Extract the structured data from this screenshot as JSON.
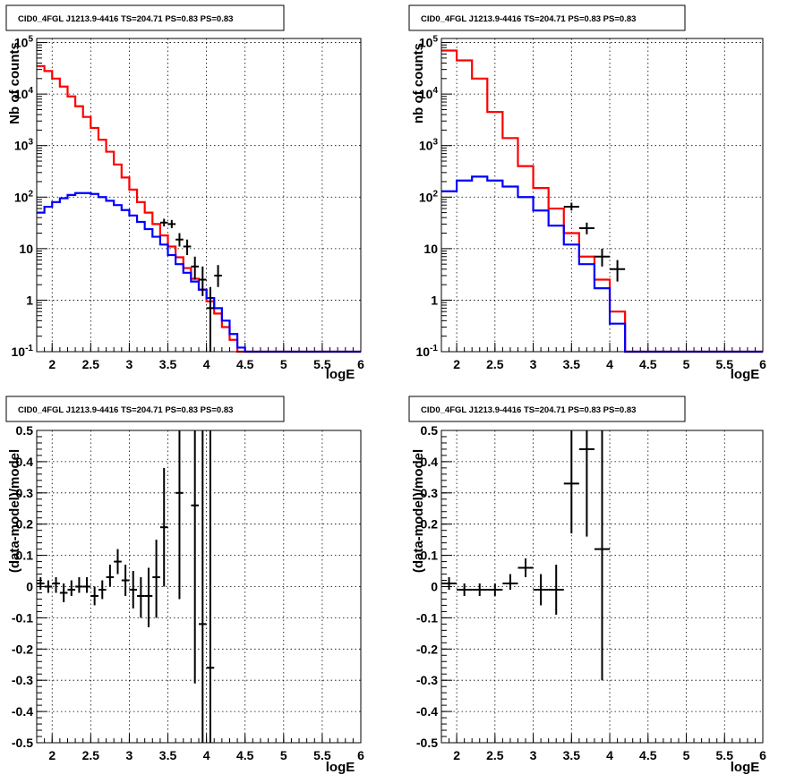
{
  "chart_data": [
    {
      "type": "line",
      "title": "CID0_4FGL J1213.9-4416 TS=204.71 PS=0.83 PS=0.83",
      "xlabel": "logE",
      "ylabel": "Nb of counts",
      "xlim": [
        1.8,
        6.0
      ],
      "ylim": [
        0.1,
        120000
      ],
      "log_y": true,
      "grid": true,
      "x_ticks": [
        "2",
        "2.5",
        "3",
        "3.5",
        "4",
        "4.5",
        "5",
        "5.5",
        "6"
      ],
      "y_ticks": [
        "10^-1",
        "1",
        "10",
        "10^2",
        "10^3",
        "10^4",
        "10^5"
      ],
      "bin_edges": [
        1.8,
        1.9,
        2.0,
        2.1,
        2.2,
        2.3,
        2.4,
        2.5,
        2.6,
        2.7,
        2.8,
        2.9,
        3.0,
        3.1,
        3.2,
        3.3,
        3.4,
        3.5,
        3.6,
        3.7,
        3.8,
        3.9,
        4.0,
        4.1,
        4.2,
        4.3,
        4.4,
        4.5,
        4.6,
        4.7,
        4.8,
        4.9,
        5.0,
        5.1,
        5.2,
        5.3,
        5.4,
        5.5,
        5.6,
        5.7,
        5.8,
        5.9,
        6.0
      ],
      "series": [
        {
          "color": "#ff0000",
          "values": [
            35000,
            28000,
            20000,
            14000,
            9000,
            5800,
            3600,
            2200,
            1300,
            760,
            430,
            240,
            140,
            80,
            50,
            30,
            18,
            11,
            6.8,
            4.2,
            2.6,
            1.6,
            0.95,
            0.55,
            0.3,
            0.17,
            0.1,
            0.1,
            0.1,
            0.1,
            0.1,
            0.1,
            0.1,
            0.1,
            0.1,
            0.1,
            0.1,
            0.1,
            0.1,
            0.1,
            0.1,
            0.1
          ]
        },
        {
          "color": "#0000ff",
          "values": [
            50,
            65,
            80,
            95,
            110,
            120,
            120,
            115,
            100,
            85,
            70,
            56,
            44,
            33,
            24,
            17,
            12,
            7.5,
            5,
            3.4,
            2.3,
            1.6,
            1.1,
            0.7,
            0.4,
            0.22,
            0.12,
            0.1,
            0.1,
            0.1,
            0.1,
            0.1,
            0.1,
            0.1,
            0.1,
            0.1,
            0.1,
            0.1,
            0.1,
            0.1,
            0.1,
            0.1
          ]
        }
      ],
      "data_points": [
        {
          "x": 3.45,
          "y": 32,
          "xerr": 0.05,
          "ylo": 27,
          "yhi": 38
        },
        {
          "x": 3.55,
          "y": 30,
          "xerr": 0.05,
          "ylo": 25,
          "yhi": 36
        },
        {
          "x": 3.65,
          "y": 15,
          "xerr": 0.05,
          "ylo": 11,
          "yhi": 20
        },
        {
          "x": 3.75,
          "y": 11,
          "xerr": 0.05,
          "ylo": 7.5,
          "yhi": 15
        },
        {
          "x": 3.85,
          "y": 4.5,
          "xerr": 0.05,
          "ylo": 2.5,
          "yhi": 7
        },
        {
          "x": 3.95,
          "y": 2.5,
          "xerr": 0.05,
          "ylo": 1.2,
          "yhi": 4.5
        },
        {
          "x": 4.05,
          "y": 0.7,
          "xerr": 0.05,
          "ylo": 0.1,
          "yhi": 1.8
        },
        {
          "x": 4.15,
          "y": 3,
          "xerr": 0.05,
          "ylo": 1.8,
          "yhi": 4.8
        }
      ]
    },
    {
      "type": "line",
      "title": "CID0_4FGL J1213.9-4416 TS=204.71 PS=0.83 PS=0.83",
      "xlabel": "logE",
      "ylabel": "nb of counts",
      "xlim": [
        1.8,
        6.0
      ],
      "ylim": [
        0.1,
        120000
      ],
      "log_y": true,
      "grid": true,
      "x_ticks": [
        "2",
        "2.5",
        "3",
        "3.5",
        "4",
        "4.5",
        "5",
        "5.5",
        "6"
      ],
      "y_ticks": [
        "10^-1",
        "1",
        "10",
        "10^2",
        "10^3",
        "10^4",
        "10^5"
      ],
      "bin_edges": [
        1.8,
        2.0,
        2.2,
        2.4,
        2.6,
        2.8,
        3.0,
        3.2,
        3.4,
        3.6,
        3.8,
        4.0,
        4.2,
        4.4,
        4.6,
        4.8,
        5.0,
        5.2,
        5.4,
        5.6,
        5.8,
        6.0
      ],
      "series": [
        {
          "color": "#ff0000",
          "values": [
            70000,
            45000,
            20000,
            4500,
            1400,
            400,
            150,
            60,
            20,
            7,
            2.5,
            0.6,
            0.1,
            0.1,
            0.1,
            0.1,
            0.1,
            0.1,
            0.1,
            0.1,
            0.1
          ]
        },
        {
          "color": "#0000ff",
          "values": [
            130,
            210,
            250,
            210,
            160,
            100,
            55,
            28,
            12,
            5,
            1.7,
            0.35,
            0.1,
            0.1,
            0.1,
            0.1,
            0.1,
            0.1,
            0.1,
            0.1,
            0.1
          ]
        }
      ],
      "data_points": [
        {
          "x": 3.5,
          "y": 65,
          "xerr": 0.1,
          "ylo": 55,
          "yhi": 78
        },
        {
          "x": 3.7,
          "y": 25,
          "xerr": 0.1,
          "ylo": 19,
          "yhi": 32
        },
        {
          "x": 3.9,
          "y": 7,
          "xerr": 0.1,
          "ylo": 4.5,
          "yhi": 10
        },
        {
          "x": 4.1,
          "y": 4,
          "xerr": 0.1,
          "ylo": 2.3,
          "yhi": 6
        }
      ]
    },
    {
      "type": "scatter",
      "title": "CID0_4FGL J1213.9-4416 TS=204.71 PS=0.83 PS=0.83",
      "xlabel": "logE",
      "ylabel": "(data-model)/model",
      "xlim": [
        1.8,
        6.0
      ],
      "ylim": [
        -0.5,
        0.5
      ],
      "grid": true,
      "x_ticks": [
        "2",
        "2.5",
        "3",
        "3.5",
        "4",
        "4.5",
        "5",
        "5.5",
        "6"
      ],
      "y_ticks": [
        "-0.5",
        "-0.4",
        "-0.3",
        "-0.2",
        "-0.1",
        "0",
        "0.1",
        "0.2",
        "0.3",
        "0.4",
        "0.5"
      ],
      "data_points": [
        {
          "x": 1.85,
          "y": 0.01,
          "xerr": 0.05,
          "ylo": -0.01,
          "yhi": 0.03
        },
        {
          "x": 1.95,
          "y": 0.0,
          "xerr": 0.05,
          "ylo": -0.02,
          "yhi": 0.02
        },
        {
          "x": 2.05,
          "y": 0.01,
          "xerr": 0.05,
          "ylo": -0.02,
          "yhi": 0.03
        },
        {
          "x": 2.15,
          "y": -0.02,
          "xerr": 0.05,
          "ylo": -0.05,
          "yhi": 0.01
        },
        {
          "x": 2.25,
          "y": -0.01,
          "xerr": 0.05,
          "ylo": -0.03,
          "yhi": 0.02
        },
        {
          "x": 2.35,
          "y": 0.0,
          "xerr": 0.05,
          "ylo": -0.02,
          "yhi": 0.03
        },
        {
          "x": 2.45,
          "y": 0.0,
          "xerr": 0.05,
          "ylo": -0.02,
          "yhi": 0.03
        },
        {
          "x": 2.55,
          "y": -0.03,
          "xerr": 0.05,
          "ylo": -0.06,
          "yhi": 0.0
        },
        {
          "x": 2.65,
          "y": -0.01,
          "xerr": 0.05,
          "ylo": -0.04,
          "yhi": 0.02
        },
        {
          "x": 2.75,
          "y": 0.03,
          "xerr": 0.05,
          "ylo": 0.0,
          "yhi": 0.07
        },
        {
          "x": 2.85,
          "y": 0.08,
          "xerr": 0.05,
          "ylo": 0.04,
          "yhi": 0.12
        },
        {
          "x": 2.95,
          "y": 0.02,
          "xerr": 0.05,
          "ylo": -0.03,
          "yhi": 0.07
        },
        {
          "x": 3.05,
          "y": -0.01,
          "xerr": 0.05,
          "ylo": -0.07,
          "yhi": 0.05
        },
        {
          "x": 3.15,
          "y": -0.03,
          "xerr": 0.05,
          "ylo": -0.1,
          "yhi": 0.03
        },
        {
          "x": 3.25,
          "y": -0.03,
          "xerr": 0.05,
          "ylo": -0.13,
          "yhi": 0.06
        },
        {
          "x": 3.35,
          "y": 0.03,
          "xerr": 0.05,
          "ylo": -0.1,
          "yhi": 0.15
        },
        {
          "x": 3.45,
          "y": 0.19,
          "xerr": 0.05,
          "ylo": 0.0,
          "yhi": 0.38
        },
        {
          "x": 3.65,
          "y": 0.3,
          "xerr": 0.05,
          "ylo": -0.04,
          "yhi": 0.5
        },
        {
          "x": 3.85,
          "y": 0.26,
          "xerr": 0.05,
          "ylo": -0.31,
          "yhi": 0.5
        },
        {
          "x": 3.95,
          "y": -0.12,
          "xerr": 0.05,
          "ylo": -0.5,
          "yhi": 0.5
        },
        {
          "x": 4.05,
          "y": -0.26,
          "xerr": 0.05,
          "ylo": -0.5,
          "yhi": 0.5
        }
      ]
    },
    {
      "type": "scatter",
      "title": "CID0_4FGL J1213.9-4416 TS=204.71 PS=0.83 PS=0.83",
      "xlabel": "logE",
      "ylabel": "(data-model)/model",
      "xlim": [
        1.8,
        6.0
      ],
      "ylim": [
        -0.5,
        0.5
      ],
      "grid": true,
      "x_ticks": [
        "2",
        "2.5",
        "3",
        "3.5",
        "4",
        "4.5",
        "5",
        "5.5",
        "6"
      ],
      "y_ticks": [
        "-0.5",
        "-0.4",
        "-0.3",
        "-0.2",
        "-0.1",
        "0",
        "0.1",
        "0.2",
        "0.3",
        "0.4",
        "0.5"
      ],
      "data_points": [
        {
          "x": 1.9,
          "y": 0.01,
          "xerr": 0.1,
          "ylo": -0.01,
          "yhi": 0.03
        },
        {
          "x": 2.1,
          "y": -0.01,
          "xerr": 0.1,
          "ylo": -0.03,
          "yhi": 0.01
        },
        {
          "x": 2.3,
          "y": -0.01,
          "xerr": 0.1,
          "ylo": -0.03,
          "yhi": 0.01
        },
        {
          "x": 2.5,
          "y": -0.01,
          "xerr": 0.1,
          "ylo": -0.03,
          "yhi": 0.01
        },
        {
          "x": 2.7,
          "y": 0.01,
          "xerr": 0.1,
          "ylo": -0.01,
          "yhi": 0.04
        },
        {
          "x": 2.9,
          "y": 0.06,
          "xerr": 0.1,
          "ylo": 0.03,
          "yhi": 0.09
        },
        {
          "x": 3.1,
          "y": -0.01,
          "xerr": 0.1,
          "ylo": -0.06,
          "yhi": 0.04
        },
        {
          "x": 3.3,
          "y": -0.01,
          "xerr": 0.1,
          "ylo": -0.09,
          "yhi": 0.07
        },
        {
          "x": 3.5,
          "y": 0.33,
          "xerr": 0.1,
          "ylo": 0.17,
          "yhi": 0.5
        },
        {
          "x": 3.7,
          "y": 0.44,
          "xerr": 0.1,
          "ylo": 0.16,
          "yhi": 0.5
        },
        {
          "x": 3.9,
          "y": 0.12,
          "xerr": 0.1,
          "ylo": -0.3,
          "yhi": 0.5
        }
      ]
    }
  ]
}
